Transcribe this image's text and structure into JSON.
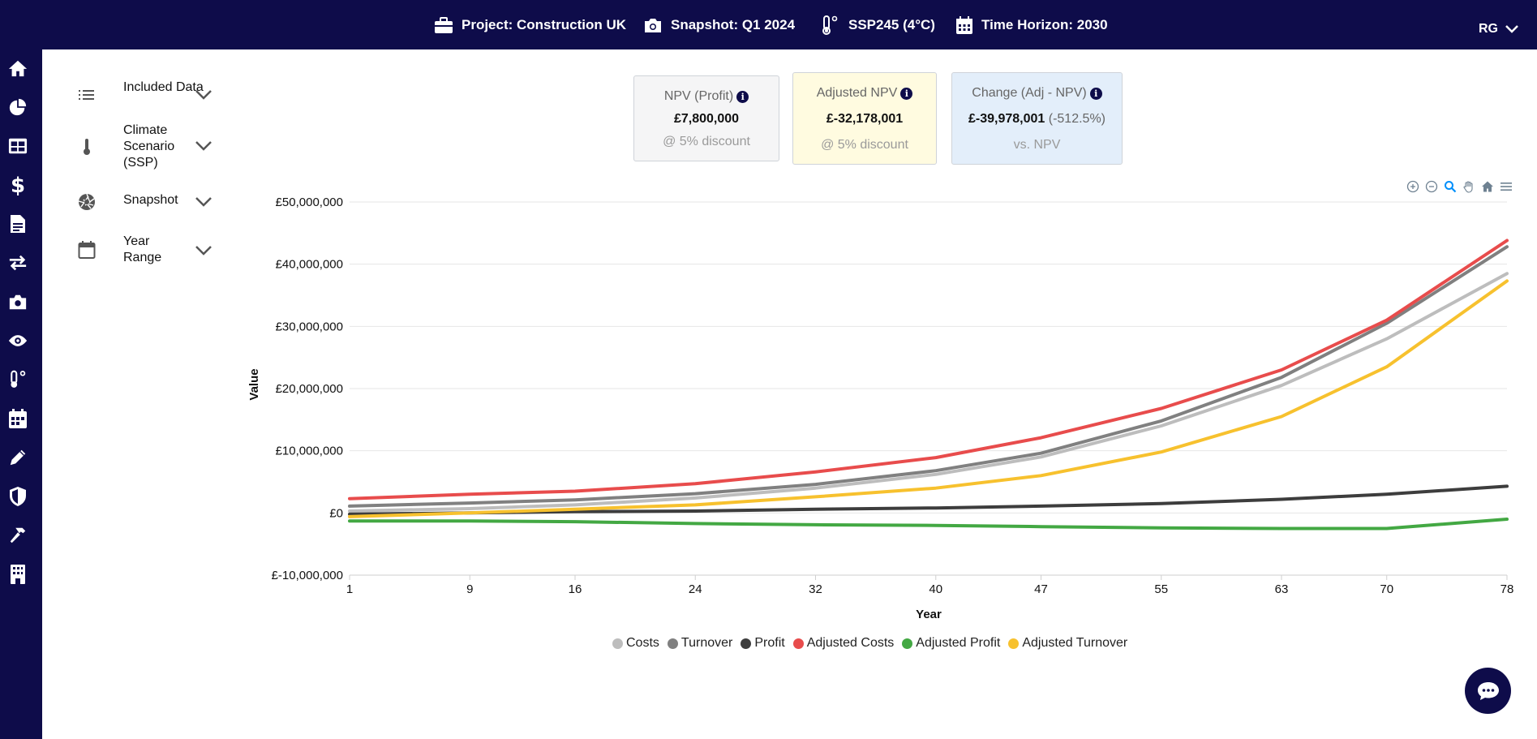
{
  "topbar": {
    "project": "Project: Construction UK",
    "snapshot": "Snapshot: Q1 2024",
    "scenario": "SSP245 (4°C)",
    "horizon": "Time Horizon: 2030",
    "user": "RG"
  },
  "sidebar": {
    "icons": [
      "home-icon",
      "pie-chart-icon",
      "grid-icon",
      "dollar-icon",
      "document-icon",
      "transfer-icon",
      "camera-icon",
      "eye-icon",
      "thermometer-icon",
      "calendar-icon",
      "pencil-icon",
      "shield-icon",
      "hammer-icon",
      "building-icon"
    ]
  },
  "filters": [
    {
      "label": "Included Data",
      "icon": "list-icon"
    },
    {
      "label": "Climate Scenario (SSP)",
      "icon": "thermometer-icon"
    },
    {
      "label": "Snapshot",
      "icon": "aperture-icon"
    },
    {
      "label": "Year Range",
      "icon": "calendar-icon"
    }
  ],
  "cards": {
    "npv": {
      "title": "NPV (Profit)",
      "value": "£7,800,000",
      "sub": "@ 5% discount"
    },
    "adjusted": {
      "title": "Adjusted NPV",
      "value": "£-32,178,001",
      "sub": "@ 5% discount"
    },
    "change": {
      "title": "Change (Adj - NPV)",
      "value": "£-39,978,001",
      "pct": "(-512.5%)",
      "sub": "vs. NPV"
    }
  },
  "colors": {
    "nav": "#0e0c4a",
    "card_npv_bg": "#f5f5f6",
    "card_adjusted_bg": "#fffbe0",
    "card_change_bg": "#e3eefa"
  },
  "chart_data": {
    "type": "line",
    "title": "",
    "xlabel": "Year",
    "ylabel": "Value",
    "x_ticks": [
      "1",
      "9",
      "16",
      "24",
      "32",
      "40",
      "47",
      "55",
      "63",
      "70",
      "78"
    ],
    "y_ticks": [
      "£50,000,000",
      "£40,000,000",
      "£30,000,000",
      "£20,000,000",
      "£10,000,000",
      "£0",
      "£-10,000,000"
    ],
    "xlim": [
      1,
      78
    ],
    "ylim": [
      -10000000,
      50000000
    ],
    "grid": true,
    "legend_position": "bottom",
    "x": [
      1,
      9,
      16,
      24,
      32,
      40,
      47,
      55,
      63,
      70,
      78
    ],
    "series": [
      {
        "name": "Costs",
        "color": "#bdbdbd",
        "values": [
          300000,
          700000,
          1300000,
          2400000,
          4000000,
          6200000,
          9000000,
          14000000,
          20500000,
          28000000,
          38500000
        ]
      },
      {
        "name": "Turnover",
        "color": "#808080",
        "values": [
          1100000,
          1600000,
          2100000,
          3100000,
          4600000,
          6800000,
          9600000,
          14800000,
          21800000,
          30500000,
          42800000
        ]
      },
      {
        "name": "Profit",
        "color": "#3d3d3d",
        "values": [
          -200000,
          0,
          200000,
          300000,
          600000,
          800000,
          1100000,
          1500000,
          2200000,
          3000000,
          4300000
        ]
      },
      {
        "name": "Adjusted Costs",
        "color": "#e84c4c",
        "values": [
          2300000,
          3000000,
          3500000,
          4700000,
          6600000,
          8900000,
          12100000,
          16800000,
          23000000,
          31000000,
          43800000
        ]
      },
      {
        "name": "Adjusted Profit",
        "color": "#43a843",
        "values": [
          -1300000,
          -1300000,
          -1400000,
          -1700000,
          -1900000,
          -2000000,
          -2200000,
          -2400000,
          -2500000,
          -2500000,
          -1000000
        ]
      },
      {
        "name": "Adjusted Turnover",
        "color": "#f7c12e",
        "values": [
          -600000,
          0,
          600000,
          1300000,
          2600000,
          4000000,
          6000000,
          9800000,
          15500000,
          23500000,
          37300000
        ]
      }
    ]
  }
}
